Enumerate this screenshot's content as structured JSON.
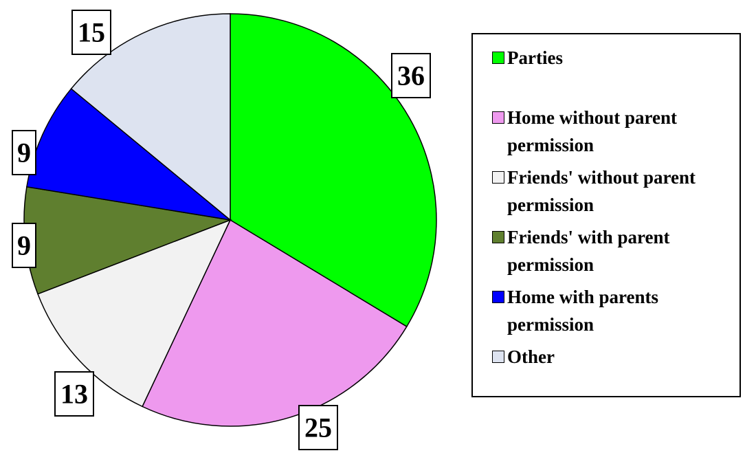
{
  "chart_data": {
    "type": "pie",
    "categories": [
      "Parties",
      "Home without parent permission",
      "Friends' without parent permission",
      "Friends' with parent permission",
      "Home with parents permission",
      "Other"
    ],
    "values": [
      36,
      25,
      13,
      9,
      9,
      15
    ],
    "colors": [
      "#00ff00",
      "#ee99ee",
      "#f2f2f2",
      "#5f7f2f",
      "#0000ff",
      "#dde3f0"
    ]
  }
}
